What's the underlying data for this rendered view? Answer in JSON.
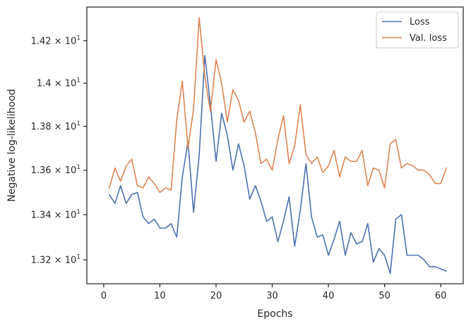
{
  "chart_data": {
    "type": "line",
    "title": "",
    "xlabel": "Epochs",
    "ylabel": "Negative log-likelihood",
    "xlim": [
      -3,
      64
    ],
    "ylim": [
      13.095,
      14.36
    ],
    "y_scale": "log",
    "grid": false,
    "legend_position": "top-right",
    "x_ticks": [
      {
        "value": 0,
        "label": "0"
      },
      {
        "value": 10,
        "label": "10"
      },
      {
        "value": 20,
        "label": "20"
      },
      {
        "value": 30,
        "label": "30"
      },
      {
        "value": 40,
        "label": "40"
      },
      {
        "value": 50,
        "label": "50"
      },
      {
        "value": 60,
        "label": "60"
      }
    ],
    "y_ticks": [
      {
        "value": 13.2,
        "base": "1.32",
        "exp": "1"
      },
      {
        "value": 13.4,
        "base": "1.34",
        "exp": "1"
      },
      {
        "value": 13.6,
        "base": "1.36",
        "exp": "1"
      },
      {
        "value": 13.8,
        "base": "1.38",
        "exp": "1"
      },
      {
        "value": 14.0,
        "base": "1.4",
        "exp": "1"
      },
      {
        "value": 14.2,
        "base": "1.42",
        "exp": "1"
      }
    ],
    "times_sign": "×",
    "tick_base": "10",
    "x": [
      1,
      2,
      3,
      4,
      5,
      6,
      7,
      8,
      9,
      10,
      11,
      12,
      13,
      14,
      15,
      16,
      17,
      18,
      19,
      20,
      21,
      22,
      23,
      24,
      25,
      26,
      27,
      28,
      29,
      30,
      31,
      32,
      33,
      34,
      35,
      36,
      37,
      38,
      39,
      40,
      41,
      42,
      43,
      44,
      45,
      46,
      47,
      48,
      49,
      50,
      51,
      52,
      53,
      54,
      55,
      56,
      57,
      58,
      59,
      60,
      61
    ],
    "series": [
      {
        "name": "Loss",
        "color": "#4c72b0",
        "values": [
          13.49,
          13.45,
          13.53,
          13.45,
          13.49,
          13.5,
          13.39,
          13.36,
          13.38,
          13.34,
          13.34,
          13.36,
          13.3,
          13.57,
          13.73,
          13.41,
          13.67,
          14.13,
          13.9,
          13.64,
          13.86,
          13.76,
          13.6,
          13.72,
          13.62,
          13.47,
          13.53,
          13.46,
          13.37,
          13.39,
          13.28,
          13.37,
          13.48,
          13.26,
          13.42,
          13.63,
          13.39,
          13.3,
          13.31,
          13.22,
          13.29,
          13.37,
          13.22,
          13.32,
          13.27,
          13.28,
          13.36,
          13.19,
          13.25,
          13.22,
          13.14,
          13.38,
          13.4,
          13.22,
          13.22,
          13.22,
          13.2,
          13.17,
          13.17,
          13.16,
          13.15
        ]
      },
      {
        "name": "Val. loss",
        "color": "#dd8452",
        "values": [
          13.52,
          13.61,
          13.55,
          13.62,
          13.65,
          13.53,
          13.52,
          13.57,
          13.54,
          13.5,
          13.52,
          13.51,
          13.83,
          14.01,
          13.7,
          13.88,
          14.31,
          14.03,
          13.87,
          14.11,
          14.0,
          13.82,
          13.97,
          13.92,
          13.82,
          13.87,
          13.77,
          13.63,
          13.65,
          13.6,
          13.74,
          13.85,
          13.63,
          13.71,
          13.9,
          13.67,
          13.63,
          13.66,
          13.59,
          13.62,
          13.69,
          13.57,
          13.66,
          13.64,
          13.64,
          13.69,
          13.53,
          13.61,
          13.6,
          13.52,
          13.72,
          13.74,
          13.61,
          13.63,
          13.62,
          13.6,
          13.6,
          13.58,
          13.54,
          13.54,
          13.61
        ]
      }
    ]
  }
}
